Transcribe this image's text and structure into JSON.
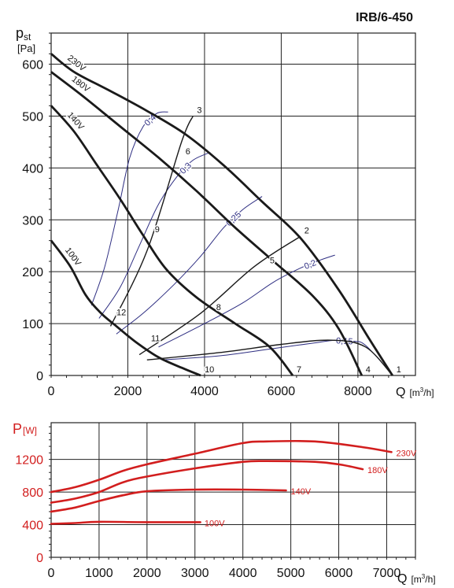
{
  "model_title": "IRB/6-450",
  "chart_data": [
    {
      "type": "line",
      "ylabel_main": "p",
      "ylabel_sub": "st",
      "yunit": "[Pa]",
      "xlabel": "Q",
      "xunit_pre": "[m",
      "xunit_sup": "3",
      "xunit_post": "/h]",
      "xlim": [
        0,
        9500
      ],
      "ylim": [
        0,
        660
      ],
      "xticks": [
        0,
        2000,
        4000,
        6000,
        8000
      ],
      "xtick_labels": [
        "0",
        "2000",
        "4000",
        "6000",
        "8000"
      ],
      "yticks": [
        0,
        100,
        200,
        300,
        400,
        500,
        600
      ],
      "ytick_labels": [
        "0",
        "100",
        "200",
        "300",
        "400",
        "500",
        "600"
      ],
      "grid": true,
      "colors": {
        "fan_curve": "#1a1a1a",
        "system_line": "#1a1a1a",
        "efficiency_line": "#2e2e82"
      },
      "fan_curves": [
        {
          "name": "230V",
          "points": [
            [
              0,
              620
            ],
            [
              600,
              585
            ],
            [
              1500,
              550
            ],
            [
              2500,
              510
            ],
            [
              3500,
              465
            ],
            [
              4500,
              405
            ],
            [
              5500,
              335
            ],
            [
              6500,
              265
            ],
            [
              7500,
              165
            ],
            [
              8300,
              70
            ],
            [
              8900,
              0
            ]
          ]
        },
        {
          "name": "180V",
          "points": [
            [
              0,
              585
            ],
            [
              800,
              540
            ],
            [
              1800,
              480
            ],
            [
              2800,
              420
            ],
            [
              3800,
              355
            ],
            [
              4800,
              285
            ],
            [
              5800,
              220
            ],
            [
              6800,
              155
            ],
            [
              7500,
              90
            ],
            [
              8100,
              0
            ]
          ]
        },
        {
          "name": "140V",
          "points": [
            [
              0,
              520
            ],
            [
              600,
              470
            ],
            [
              1200,
              405
            ],
            [
              1800,
              340
            ],
            [
              2400,
              270
            ],
            [
              3000,
              205
            ],
            [
              3800,
              150
            ],
            [
              4800,
              100
            ],
            [
              5700,
              55
            ],
            [
              6300,
              0
            ]
          ]
        },
        {
          "name": "100V",
          "points": [
            [
              0,
              260
            ],
            [
              500,
              210
            ],
            [
              900,
              155
            ],
            [
              1300,
              120
            ],
            [
              1700,
              95
            ],
            [
              2200,
              65
            ],
            [
              2800,
              35
            ],
            [
              3400,
              15
            ],
            [
              3900,
              0
            ]
          ]
        }
      ],
      "system_lines": [
        {
          "name": "3",
          "points": [
            [
              1550,
              95
            ],
            [
              2500,
              240
            ],
            [
              3400,
              450
            ],
            [
              3700,
              500
            ]
          ]
        },
        {
          "name": "2",
          "points": [
            [
              2300,
              40
            ],
            [
              3900,
              120
            ],
            [
              5300,
              210
            ],
            [
              6500,
              268
            ]
          ]
        },
        {
          "name": "1",
          "points": [
            [
              2500,
              30
            ],
            [
              4500,
              45
            ],
            [
              6000,
              60
            ],
            [
              7300,
              68
            ],
            [
              8200,
              55
            ],
            [
              8900,
              0
            ]
          ]
        }
      ],
      "efficiency_lines": [
        {
          "label": "0,4",
          "points": [
            [
              1050,
              135
            ],
            [
              1400,
              210
            ],
            [
              1750,
              320
            ],
            [
              2050,
              420
            ],
            [
              2400,
              480
            ],
            [
              2750,
              505
            ],
            [
              3050,
              508
            ]
          ]
        },
        {
          "label": "0,3",
          "points": [
            [
              1250,
              110
            ],
            [
              1800,
              170
            ],
            [
              2300,
              250
            ],
            [
              2800,
              330
            ],
            [
              3300,
              385
            ],
            [
              3700,
              415
            ],
            [
              4150,
              430
            ]
          ]
        },
        {
          "label": "0,25",
          "points": [
            [
              1700,
              80
            ],
            [
              2400,
              120
            ],
            [
              3200,
              175
            ],
            [
              3900,
              230
            ],
            [
              4500,
              285
            ],
            [
              5000,
              320
            ],
            [
              5500,
              345
            ]
          ]
        },
        {
          "label": "0,2",
          "points": [
            [
              2800,
              55
            ],
            [
              4000,
              100
            ],
            [
              5000,
              140
            ],
            [
              5800,
              180
            ],
            [
              6500,
              207
            ],
            [
              7000,
              222
            ],
            [
              7400,
              232
            ]
          ]
        },
        {
          "label": "0,15",
          "points": [
            [
              2900,
              30
            ],
            [
              4400,
              38
            ],
            [
              5800,
              52
            ],
            [
              6800,
              62
            ],
            [
              7400,
              68
            ],
            [
              7900,
              66
            ],
            [
              8200,
              58
            ],
            [
              8800,
              10
            ]
          ]
        }
      ],
      "point_labels": [
        {
          "label": "1",
          "x": 8900,
          "y": 0
        },
        {
          "label": "2",
          "x": 6500,
          "y": 268
        },
        {
          "label": "3",
          "x": 3700,
          "y": 500
        },
        {
          "label": "4",
          "x": 8100,
          "y": 0
        },
        {
          "label": "5",
          "x": 5600,
          "y": 210
        },
        {
          "label": "6",
          "x": 3400,
          "y": 420
        },
        {
          "label": "7",
          "x": 6300,
          "y": 0
        },
        {
          "label": "8",
          "x": 4200,
          "y": 120
        },
        {
          "label": "9",
          "x": 2600,
          "y": 270
        },
        {
          "label": "10",
          "x": 3900,
          "y": 0
        },
        {
          "label": "11",
          "x": 2500,
          "y": 60
        },
        {
          "label": "12",
          "x": 1600,
          "y": 110
        }
      ]
    },
    {
      "type": "line",
      "ylabel_main": "P",
      "yunit": "[W]",
      "xlabel": "Q",
      "xunit_pre": "[m",
      "xunit_sup": "3",
      "xunit_post": "/h]",
      "xlim": [
        0,
        7600
      ],
      "ylim": [
        0,
        1650
      ],
      "xticks": [
        0,
        1000,
        2000,
        3000,
        4000,
        5000,
        6000,
        7000
      ],
      "xtick_labels": [
        "0",
        "1000",
        "2000",
        "3000",
        "4000",
        "5000",
        "6000",
        "7000"
      ],
      "yticks": [
        0,
        400,
        800,
        1200
      ],
      "ytick_labels": [
        "0",
        "400",
        "800",
        "1200"
      ],
      "grid": true,
      "colors": {
        "power_curve": "#d21e1e",
        "axis_label": "#d21e1e"
      },
      "series": [
        {
          "name": "230V",
          "points": [
            [
              0,
              800
            ],
            [
              500,
              860
            ],
            [
              1000,
              950
            ],
            [
              1500,
              1060
            ],
            [
              2000,
              1140
            ],
            [
              3000,
              1270
            ],
            [
              4000,
              1400
            ],
            [
              4500,
              1420
            ],
            [
              5500,
              1420
            ],
            [
              6500,
              1350
            ],
            [
              7100,
              1290
            ]
          ]
        },
        {
          "name": "180V",
          "points": [
            [
              0,
              670
            ],
            [
              500,
              720
            ],
            [
              1000,
              800
            ],
            [
              1500,
              920
            ],
            [
              2000,
              990
            ],
            [
              3000,
              1090
            ],
            [
              4000,
              1170
            ],
            [
              4500,
              1180
            ],
            [
              5500,
              1170
            ],
            [
              6000,
              1140
            ],
            [
              6500,
              1080
            ]
          ]
        },
        {
          "name": "140V",
          "points": [
            [
              0,
              560
            ],
            [
              500,
              610
            ],
            [
              1000,
              690
            ],
            [
              1500,
              760
            ],
            [
              2000,
              810
            ],
            [
              3000,
              830
            ],
            [
              4000,
              830
            ],
            [
              4900,
              820
            ]
          ]
        },
        {
          "name": "100V",
          "points": [
            [
              0,
              410
            ],
            [
              500,
              420
            ],
            [
              1000,
              435
            ],
            [
              2000,
              430
            ],
            [
              3000,
              430
            ],
            [
              3100,
              430
            ]
          ]
        }
      ]
    }
  ]
}
